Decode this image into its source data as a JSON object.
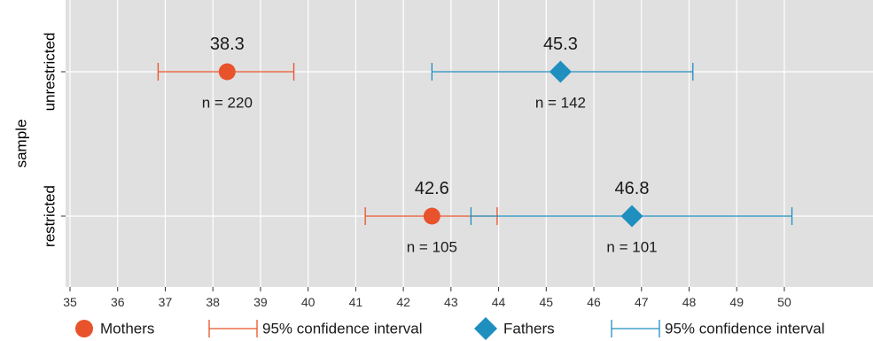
{
  "chart_data": {
    "type": "scatter",
    "title": "",
    "xlabel": "",
    "ylabel": "sample",
    "xlim": [
      34.75,
      50.25
    ],
    "xticks": [
      35,
      36,
      37,
      38,
      39,
      40,
      41,
      42,
      43,
      44,
      45,
      46,
      47,
      48,
      49,
      50
    ],
    "categories": [
      "unrestricted",
      "restricted"
    ],
    "grid": true,
    "legend_position": "bottom",
    "series": [
      {
        "name": "Mothers",
        "marker": "circle",
        "color": "#e8532b",
        "points": [
          {
            "category": "unrestricted",
            "value": 38.3,
            "label": "38.3",
            "ci_low": 36.85,
            "ci_high": 39.7,
            "n_label": "n = 220"
          },
          {
            "category": "restricted",
            "value": 42.6,
            "label": "42.6",
            "ci_low": 41.2,
            "ci_high": 43.97,
            "n_label": "n = 105"
          }
        ]
      },
      {
        "name": "Fathers",
        "marker": "diamond",
        "color": "#1e8fbf",
        "points": [
          {
            "category": "unrestricted",
            "value": 45.3,
            "label": "45.3",
            "ci_low": 42.6,
            "ci_high": 48.08,
            "n_label": "n = 142"
          },
          {
            "category": "restricted",
            "value": 46.8,
            "label": "46.8",
            "ci_low": 43.42,
            "ci_high": 50.16,
            "n_label": "n = 101"
          }
        ]
      }
    ],
    "legend": [
      {
        "label": "Mothers",
        "symbol": "circle",
        "color": "#e8532b"
      },
      {
        "label": "95% confidence interval",
        "symbol": "errorbar",
        "color": "#e8532b"
      },
      {
        "label": "Fathers",
        "symbol": "diamond",
        "color": "#1e8fbf"
      },
      {
        "label": "95% confidence interval",
        "symbol": "errorbar",
        "color": "#1e8fbf"
      }
    ],
    "colors": {
      "panel": "#e0e0e0",
      "grid": "#ffffff",
      "mothers": "#e8532b",
      "fathers": "#1e8fbf"
    }
  }
}
